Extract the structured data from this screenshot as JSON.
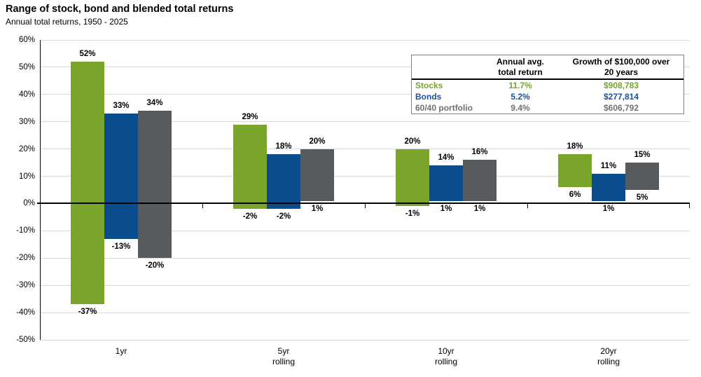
{
  "chart_data": {
    "type": "bar",
    "subtype": "floating-range-columns",
    "title": "Range of stock, bond and blended total returns",
    "subtitle": "Annual total returns, 1950 - 2025",
    "categories": [
      "1yr",
      "5yr\nrolling",
      "10yr\nrolling",
      "20yr\nrolling"
    ],
    "xlabel": "",
    "ylabel": "",
    "ylim": [
      -50,
      60
    ],
    "ytick_step": 10,
    "ytick_suffix": "%",
    "grid": true,
    "gridline_color": "#d9d9d9",
    "series": [
      {
        "name": "Stocks",
        "color": "#7AA42A",
        "max": [
          52,
          29,
          20,
          18
        ],
        "min": [
          -37,
          -2,
          -1,
          6
        ]
      },
      {
        "name": "Bonds",
        "color": "#0B4C8C",
        "max": [
          33,
          18,
          14,
          11
        ],
        "min": [
          -13,
          -2,
          1,
          1
        ]
      },
      {
        "name": "60/40 portfolio",
        "color": "#585B5E",
        "max": [
          34,
          20,
          16,
          15
        ],
        "min": [
          -20,
          1,
          1,
          5
        ]
      }
    ]
  },
  "legend_table": {
    "headers": {
      "metric": "Annual avg.\ntotal return",
      "growth": "Growth of $100,000 over\n20 years"
    },
    "rows": [
      {
        "label": "Stocks",
        "avg_return": "11.7%",
        "growth": "$908,783",
        "color": "#76A22E"
      },
      {
        "label": "Bonds",
        "avg_return": "5.2%",
        "growth": "$277,814",
        "color": "#1D4FA1"
      },
      {
        "label": "60/40 portfolio",
        "avg_return": "9.4%",
        "growth": "$606,792",
        "color": "#6E7073"
      }
    ]
  }
}
